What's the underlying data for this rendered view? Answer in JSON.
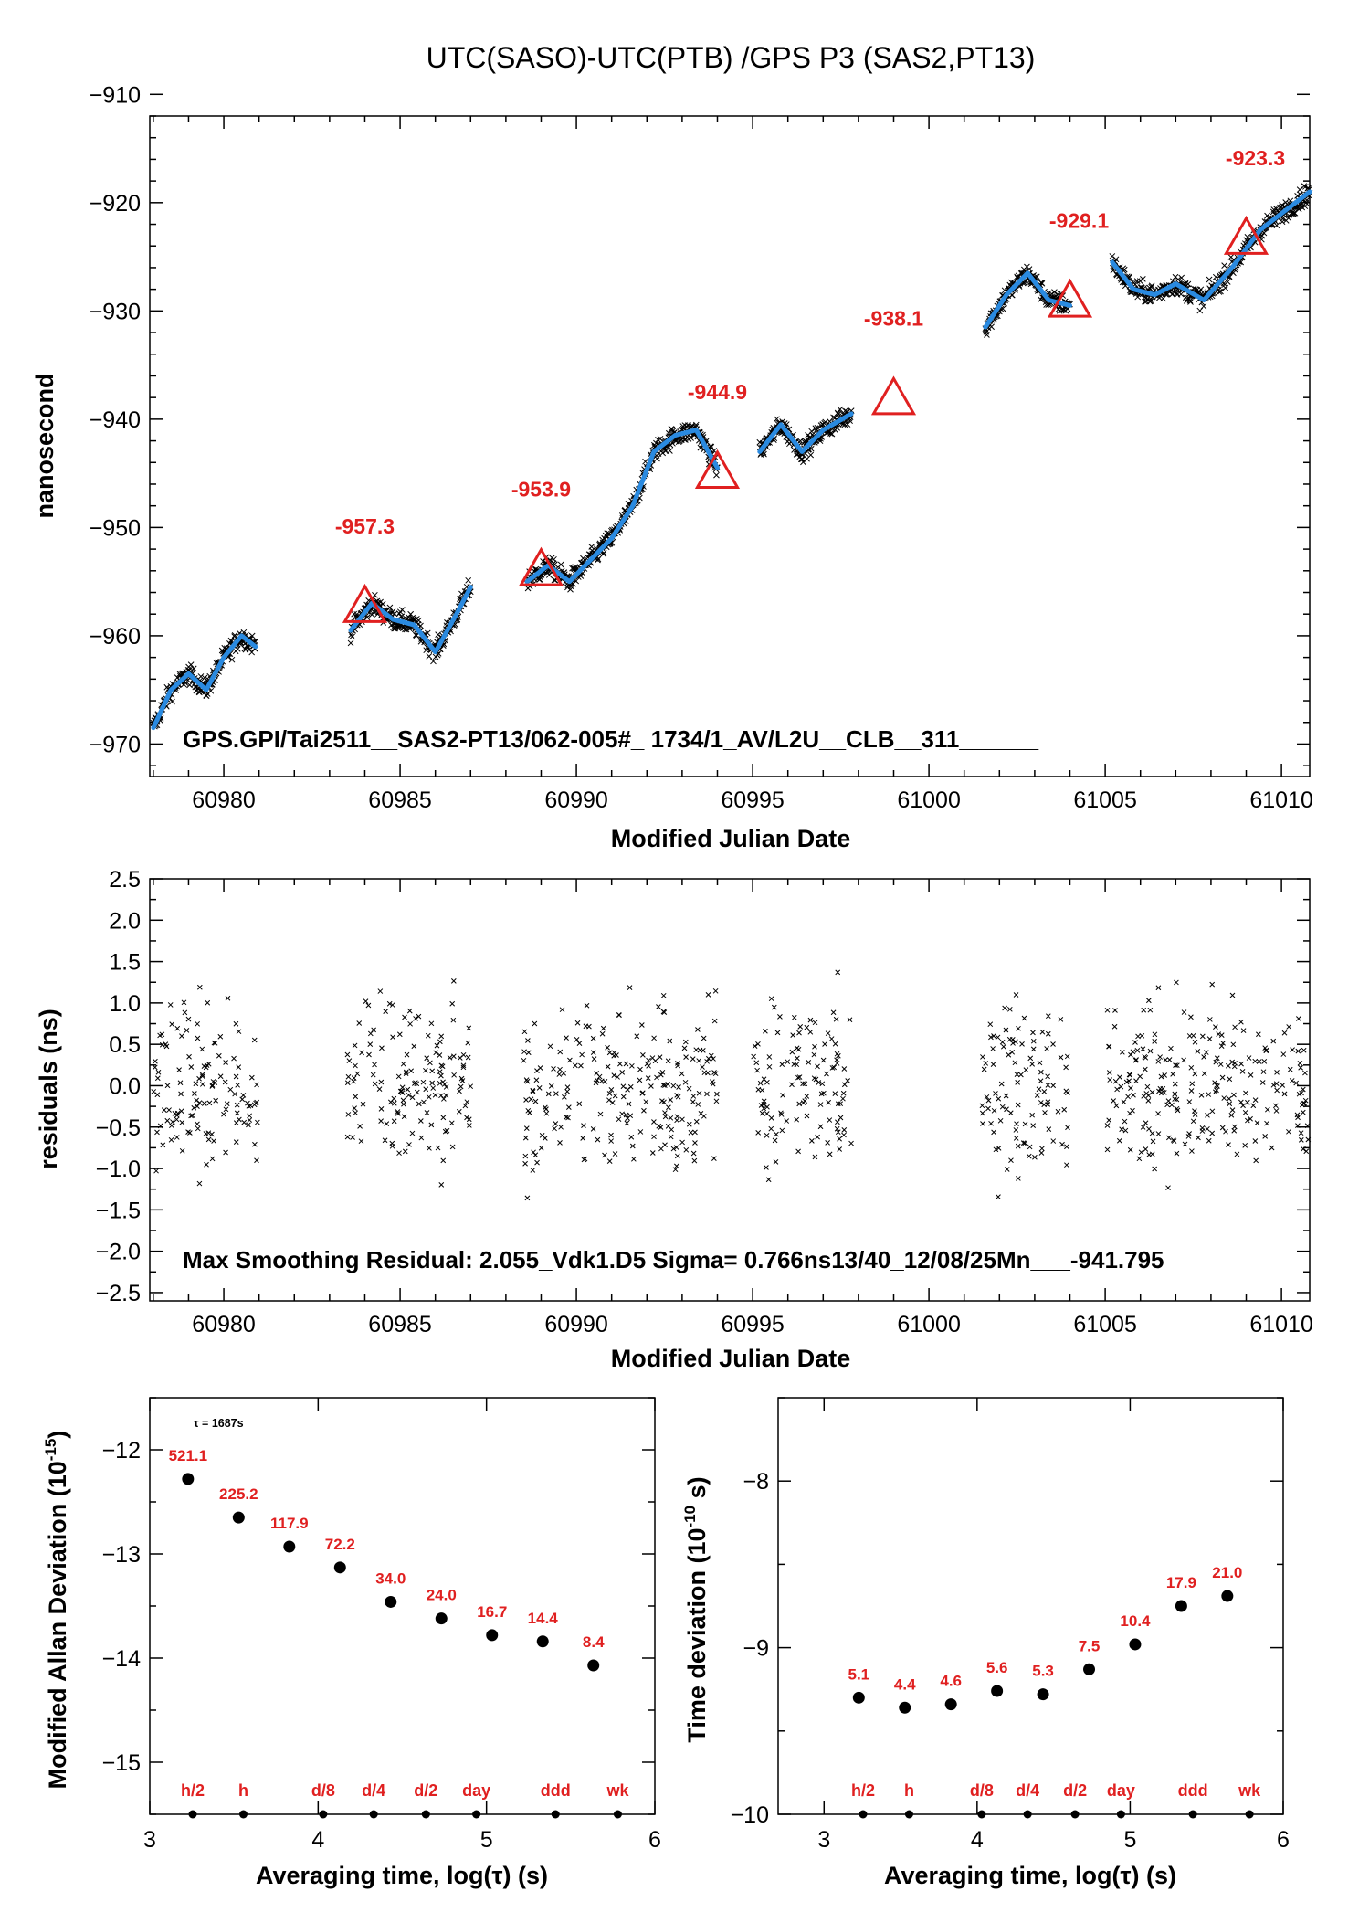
{
  "title": "UTC(SASO)-UTC(PTB)  /GPS  P3  (SAS2,PT13)",
  "colors": {
    "marker": "#e02020",
    "smooth": "#2a8ae0",
    "data": "#000000",
    "label": "#e02020"
  },
  "chart_data": [
    {
      "id": "timeseries",
      "type": "scatter",
      "xlabel": "Modified Julian Date",
      "ylabel": "nanosecond",
      "xlim": [
        60977.9,
        61010.8
      ],
      "ylim": [
        -973,
        -912
      ],
      "xticks": [
        60980,
        60985,
        60990,
        60995,
        61000,
        61005,
        61010
      ],
      "yticks": [
        -910,
        -920,
        -930,
        -940,
        -950,
        -960,
        -970
      ],
      "info_text": "GPS.GPI/Tai2511__SAS2-PT13/062-005#_  1734/1_AV/L2U__CLB__311______",
      "segments": [
        {
          "x": [
            60978.0,
            60978.5,
            60979.0,
            60979.5,
            60980.0,
            60980.5,
            60980.9
          ],
          "y": [
            -968.5,
            -965.0,
            -963.5,
            -965.0,
            -962.0,
            -960.0,
            -961.0
          ]
        },
        {
          "x": [
            60983.6,
            60984.2,
            60984.8,
            60985.4,
            60986.0,
            60986.6,
            60987.0
          ],
          "y": [
            -959.5,
            -957.0,
            -958.5,
            -959.0,
            -961.5,
            -958.0,
            -955.5
          ]
        },
        {
          "x": [
            60988.6,
            60989.2,
            60989.8,
            60990.4,
            60991.0,
            60991.6,
            60992.2,
            60992.8,
            60993.4,
            60994.0
          ],
          "y": [
            -955.0,
            -953.5,
            -955.0,
            -953.0,
            -951.0,
            -948.0,
            -943.0,
            -941.5,
            -941.0,
            -944.5
          ]
        },
        {
          "x": [
            60995.2,
            60995.8,
            60996.4,
            60997.0,
            60997.8
          ],
          "y": [
            -943.0,
            -940.5,
            -943.0,
            -941.0,
            -939.5
          ]
        },
        {
          "x": [
            61001.6,
            61002.2,
            61002.8,
            61003.4,
            61004.0
          ],
          "y": [
            -931.5,
            -928.5,
            -926.5,
            -929.0,
            -929.5
          ]
        },
        {
          "x": [
            61005.2,
            61005.8,
            61006.4,
            61007.0,
            61007.8,
            61008.6,
            61009.4,
            61010.0,
            61010.8
          ],
          "y": [
            -925.5,
            -928.0,
            -928.5,
            -927.5,
            -929.0,
            -926.0,
            -922.5,
            -921.0,
            -919.0
          ]
        }
      ],
      "markers": [
        {
          "x": 60984.0,
          "y": -957.3,
          "label": "-957.3"
        },
        {
          "x": 60989.0,
          "y": -953.9,
          "label": "-953.9"
        },
        {
          "x": 60994.0,
          "y": -944.9,
          "label": "-944.9"
        },
        {
          "x": 60999.0,
          "y": -938.1,
          "label": "-938.1"
        },
        {
          "x": 61004.0,
          "y": -929.1,
          "label": "-929.1"
        },
        {
          "x": 61009.0,
          "y": -923.3,
          "label": "-923.3"
        }
      ]
    },
    {
      "id": "residuals",
      "type": "scatter",
      "xlabel": "Modified Julian Date",
      "ylabel": "residuals (ns)",
      "xlim": [
        60977.9,
        61010.8
      ],
      "ylim": [
        -2.6,
        2.5
      ],
      "xticks": [
        60980,
        60985,
        60990,
        60995,
        61000,
        61005,
        61010
      ],
      "yticks": [
        2.5,
        2.0,
        1.5,
        1.0,
        0.5,
        0.0,
        -0.5,
        -1.0,
        -1.5,
        -2.0,
        -2.5
      ],
      "ytick_labels": [
        "2.5",
        "2.0",
        "1.5",
        "1.0",
        "0.5",
        "0.0",
        "−0.5",
        "−1.0",
        "−1.5",
        "−2.0",
        "−2.5"
      ],
      "x_ranges": [
        [
          60978.0,
          60981.0
        ],
        [
          60983.5,
          60987.0
        ],
        [
          60988.5,
          60994.0
        ],
        [
          60995.0,
          60997.8
        ],
        [
          61001.5,
          61004.0
        ],
        [
          61005.0,
          61010.8
        ]
      ],
      "info_text": "Max Smoothing Residual: 2.055_Vdk1.D5  Sigma= 0.766ns13/40_12/08/25Mn___-941.795"
    },
    {
      "id": "mdev",
      "type": "scatter",
      "xlabel": "Averaging time, log(τ) (s)",
      "ylabel": "Modified Allan Deviation (10",
      "ylabel_sup": "-15",
      "ylabel_end": ")",
      "xlim": [
        3,
        6
      ],
      "ylim": [
        -15.5,
        -11.5
      ],
      "xticks": [
        3,
        4,
        5,
        6
      ],
      "yticks": [
        -12,
        -13,
        -14,
        -15
      ],
      "tau_note": "τ = 1687s",
      "x": [
        3.227,
        3.528,
        3.829,
        4.13,
        4.431,
        4.732,
        5.033,
        5.334,
        5.635
      ],
      "y": [
        -12.28,
        -12.65,
        -12.93,
        -13.13,
        -13.46,
        -13.62,
        -13.78,
        -13.84,
        -14.07
      ],
      "labels": [
        "521.1",
        "225.2",
        "117.9",
        "72.2",
        "34.0",
        "24.0",
        "16.7",
        "14.4",
        "8.4"
      ],
      "ref_x": [
        3.255,
        3.556,
        4.03,
        4.33,
        4.64,
        4.94,
        5.41,
        5.78
      ],
      "ref_labels": [
        "h/2",
        "h",
        "d/8",
        "d/4",
        "d/2",
        "day",
        "ddd",
        "wk"
      ]
    },
    {
      "id": "tdev",
      "type": "scatter",
      "xlabel": "Averaging time, log(τ) (s)",
      "ylabel": "Time deviation (10",
      "ylabel_sup": "-10",
      "ylabel_end": " s)",
      "xlim": [
        2.7,
        6.0
      ],
      "ylim": [
        -10.0,
        -7.5
      ],
      "xticks": [
        3,
        4,
        5,
        6
      ],
      "yticks": [
        -8,
        -9,
        -10
      ],
      "x": [
        3.227,
        3.528,
        3.829,
        4.13,
        4.431,
        4.732,
        5.033,
        5.334,
        5.635
      ],
      "y": [
        -9.3,
        -9.36,
        -9.34,
        -9.26,
        -9.28,
        -9.13,
        -8.98,
        -8.75,
        -8.69
      ],
      "labels": [
        "5.1",
        "4.4",
        "4.6",
        "5.6",
        "5.3",
        "7.5",
        "10.4",
        "17.9",
        "21.0"
      ],
      "ref_x": [
        3.255,
        3.556,
        4.03,
        4.33,
        4.64,
        4.94,
        5.41,
        5.78
      ],
      "ref_labels": [
        "h/2",
        "h",
        "d/8",
        "d/4",
        "d/2",
        "day",
        "ddd",
        "wk"
      ]
    }
  ]
}
